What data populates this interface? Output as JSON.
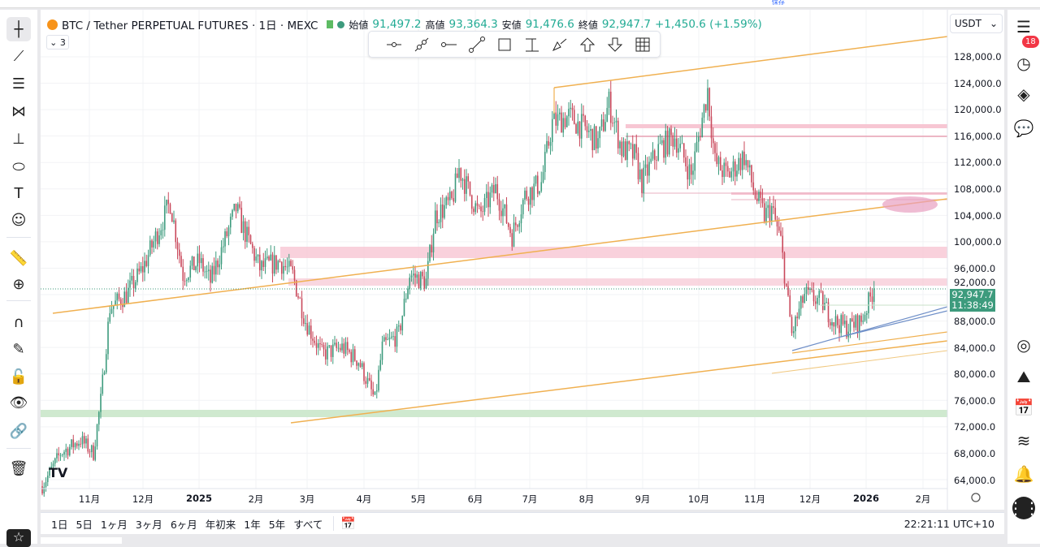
{
  "topbar": {
    "save_label": "保存"
  },
  "legend": {
    "symbol": "BTC / Tether PERPETUAL FUTURES · 1日 · MEXC",
    "open_label": "始値",
    "open": "91,497.2",
    "high_label": "高値",
    "high": "93,364.3",
    "low_label": "安値",
    "low": "91,476.6",
    "close_label": "終値",
    "close": "92,947.7",
    "change": "+1,450.6 (+1.59%)",
    "indicator_count": "3"
  },
  "currency": "USDT",
  "current_price": {
    "value": "92,947.7",
    "countdown": "11:38:49"
  },
  "price_axis": [
    "128,000.0",
    "124,000.0",
    "120,000.0",
    "116,000.0",
    "112,000.0",
    "108,000.0",
    "104,000.0",
    "100,000.0",
    "96,000.0",
    "92,000.0",
    "88,000.0",
    "84,000.0",
    "80,000.0",
    "76,000.0",
    "72,000.0",
    "68,000.0",
    "64,000.0"
  ],
  "time_axis": [
    "11月",
    "12月",
    "2025",
    "2月",
    "3月",
    "4月",
    "5月",
    "6月",
    "7月",
    "8月",
    "9月",
    "10月",
    "11月",
    "12月",
    "2026",
    "2月"
  ],
  "ranges": [
    "1日",
    "5日",
    "1ヶ月",
    "3ヶ月",
    "6ヶ月",
    "年初来",
    "1年",
    "5年",
    "すべて"
  ],
  "clock": "22:21:11 UTC+10",
  "notifications": "18",
  "colors": {
    "up": "#22ab94",
    "down": "#f23645",
    "candle_up": "#3d9b7d",
    "candle_down": "#c9485b",
    "trend": "#f0b050",
    "zone_pink": "#f7c6d3",
    "zone_green": "#cfe9cf"
  },
  "chart_data": {
    "type": "candlestick",
    "title": "BTC / Tether PERPETUAL FUTURES · 1日 · MEXC",
    "ylim": [
      62000,
      132000
    ],
    "keypoints_note": "approximate price path (day index from first candle, price)",
    "path": [
      [
        0,
        63000
      ],
      [
        10,
        68000
      ],
      [
        21,
        70000
      ],
      [
        28,
        68000
      ],
      [
        32,
        76000
      ],
      [
        37,
        90000
      ],
      [
        46,
        92000
      ],
      [
        55,
        96000
      ],
      [
        61,
        100000
      ],
      [
        70,
        106000
      ],
      [
        77,
        95000
      ],
      [
        86,
        97000
      ],
      [
        92,
        94000
      ],
      [
        106,
        105000
      ],
      [
        110,
        102000
      ],
      [
        119,
        96000
      ],
      [
        130,
        97000
      ],
      [
        137,
        95000
      ],
      [
        144,
        88000
      ],
      [
        153,
        83000
      ],
      [
        164,
        84000
      ],
      [
        173,
        82000
      ],
      [
        182,
        76000
      ],
      [
        186,
        84000
      ],
      [
        195,
        86000
      ],
      [
        201,
        95000
      ],
      [
        210,
        94000
      ],
      [
        215,
        104000
      ],
      [
        224,
        106000
      ],
      [
        228,
        111000
      ],
      [
        239,
        104000
      ],
      [
        248,
        108000
      ],
      [
        257,
        101000
      ],
      [
        264,
        107000
      ],
      [
        273,
        109000
      ],
      [
        279,
        118000
      ],
      [
        288,
        119000
      ],
      [
        297,
        117000
      ],
      [
        304,
        115000
      ],
      [
        310,
        121000
      ],
      [
        317,
        114000
      ],
      [
        324,
        113000
      ],
      [
        328,
        109000
      ],
      [
        337,
        114000
      ],
      [
        346,
        116000
      ],
      [
        355,
        110000
      ],
      [
        364,
        123000
      ],
      [
        368,
        112000
      ],
      [
        375,
        110000
      ],
      [
        384,
        113000
      ],
      [
        390,
        107000
      ],
      [
        395,
        104000
      ],
      [
        399,
        105000
      ],
      [
        404,
        100000
      ],
      [
        410,
        86000
      ],
      [
        417,
        92000
      ],
      [
        426,
        91000
      ],
      [
        433,
        88000
      ],
      [
        440,
        87000
      ],
      [
        448,
        88000
      ],
      [
        455,
        92948
      ]
    ]
  }
}
